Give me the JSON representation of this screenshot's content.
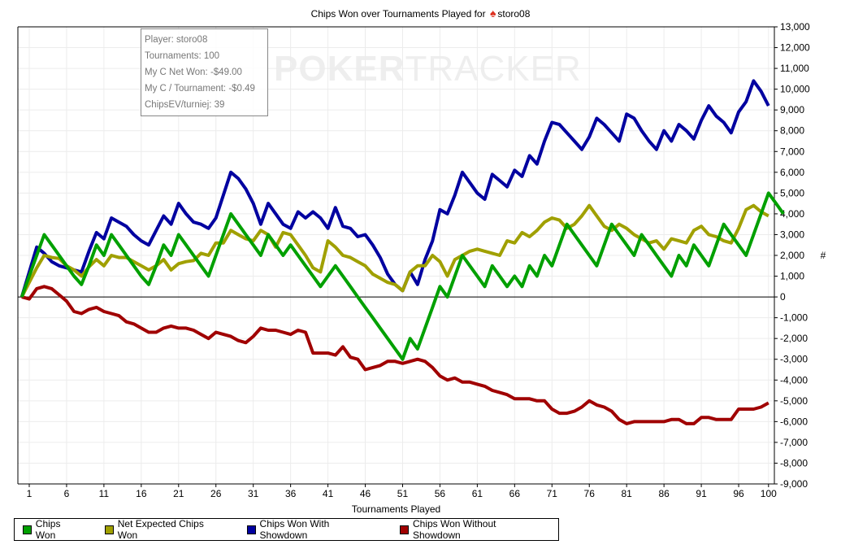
{
  "title": {
    "prefix": "Chips Won over Tournaments Played for",
    "player": "storo08",
    "icon": "spade-icon"
  },
  "watermark": {
    "bold": "POKER",
    "light": "TRACKER"
  },
  "info_box": [
    "Player: storo08",
    "Tournaments: 100",
    "My C Net Won: -$49.00",
    "My C / Tournament: -$0.49",
    "ChipsEV/turniej: 39"
  ],
  "legend": [
    {
      "label": "Chips Won",
      "color": "#00a000"
    },
    {
      "label": "Net Expected Chips Won",
      "color": "#a0a000"
    },
    {
      "label": "Chips Won With Showdown",
      "color": "#0000a0"
    },
    {
      "label": "Chips Won Without Showdown",
      "color": "#a00000"
    }
  ],
  "chart_data": {
    "type": "line",
    "title": "Chips Won over Tournaments Played for storo08",
    "xlabel": "Tournaments Played",
    "ylabel": "#",
    "xlim": [
      0,
      100
    ],
    "ylim": [
      -9000,
      13000
    ],
    "xticks": [
      1,
      6,
      11,
      16,
      21,
      26,
      31,
      36,
      41,
      46,
      51,
      56,
      61,
      66,
      71,
      76,
      81,
      86,
      91,
      96,
      100
    ],
    "yticks": [
      -9000,
      -8000,
      -7000,
      -6000,
      -5000,
      -4000,
      -3000,
      -2000,
      -1000,
      0,
      1000,
      2000,
      3000,
      4000,
      5000,
      6000,
      7000,
      8000,
      9000,
      10000,
      11000,
      12000,
      13000
    ],
    "grid": true,
    "legend_position": "bottom",
    "series": [
      {
        "name": "Chips Won",
        "color": "#00a000",
        "values": [
          0,
          1000,
          2000,
          3000,
          2500,
          2000,
          1500,
          1000,
          600,
          1500,
          2500,
          2000,
          3000,
          2500,
          2000,
          1500,
          1000,
          600,
          1500,
          2500,
          2000,
          3000,
          2500,
          2000,
          1500,
          1000,
          2000,
          3000,
          4000,
          3500,
          3000,
          2500,
          2000,
          3000,
          2500,
          2000,
          2500,
          2000,
          1500,
          1000,
          500,
          1000,
          1500,
          1000,
          500,
          0,
          -500,
          -1000,
          -1500,
          -2000,
          -2500,
          -3000,
          -2000,
          -2500,
          -1500,
          -500,
          500,
          0,
          1000,
          2000,
          1500,
          1000,
          500,
          1500,
          1000,
          500,
          1000,
          500,
          1500,
          1000,
          2000,
          1500,
          2500,
          3500,
          3000,
          2500,
          2000,
          1500,
          2500,
          3500,
          3000,
          2500,
          2000,
          3000,
          2500,
          2000,
          1500,
          1000,
          2000,
          1500,
          2500,
          2000,
          1500,
          2500,
          3500,
          3000,
          2500,
          2000,
          3000,
          4000,
          5000,
          4500,
          4000
        ]
      },
      {
        "name": "Net Expected Chips Won",
        "color": "#a0a000",
        "values": [
          0,
          700,
          1400,
          2000,
          1900,
          1850,
          1500,
          1300,
          1000,
          1450,
          1800,
          1500,
          2000,
          1900,
          1900,
          1700,
          1500,
          1300,
          1500,
          1800,
          1300,
          1600,
          1700,
          1750,
          2100,
          2000,
          2600,
          2600,
          3200,
          3000,
          2800,
          2700,
          3200,
          3000,
          2400,
          3100,
          3000,
          2500,
          2000,
          1400,
          1200,
          2700,
          2400,
          2000,
          1900,
          1700,
          1500,
          1100,
          900,
          700,
          600,
          300,
          1200,
          1500,
          1500,
          2000,
          1700,
          1000,
          1800,
          2000,
          2200,
          2300,
          2200,
          2100,
          2000,
          2700,
          2600,
          3100,
          2900,
          3200,
          3600,
          3800,
          3700,
          3300,
          3500,
          3900,
          4400,
          3900,
          3400,
          3200,
          3500,
          3300,
          3000,
          2800,
          2600,
          2700,
          2300,
          2800,
          2700,
          2600,
          3200,
          3400,
          3000,
          2900,
          2700,
          2600,
          3300,
          4200,
          4400,
          4100,
          3900
        ]
      },
      {
        "name": "Chips Won With Showdown",
        "color": "#0000a0",
        "values": [
          0,
          1200,
          2400,
          2100,
          1700,
          1500,
          1400,
          1300,
          1200,
          2200,
          3100,
          2800,
          3800,
          3600,
          3400,
          3000,
          2700,
          2500,
          3200,
          3900,
          3500,
          4500,
          4000,
          3600,
          3500,
          3300,
          3800,
          4900,
          6000,
          5700,
          5200,
          4500,
          3500,
          4500,
          4000,
          3500,
          3300,
          4100,
          3800,
          4100,
          3800,
          3300,
          4300,
          3400,
          3300,
          2900,
          3000,
          2500,
          1900,
          1100,
          600,
          300,
          1200,
          600,
          1800,
          2700,
          4200,
          4000,
          4900,
          6000,
          5500,
          5000,
          4700,
          5900,
          5600,
          5300,
          6100,
          5800,
          6800,
          6400,
          7500,
          8400,
          8300,
          7900,
          7500,
          7100,
          7700,
          8600,
          8300,
          7900,
          7500,
          8800,
          8600,
          8000,
          7500,
          7100,
          8000,
          7500,
          8300,
          8000,
          7600,
          8500,
          9200,
          8700,
          8400,
          7900,
          8900,
          9400,
          10400,
          9900,
          9200
        ]
      },
      {
        "name": "Chips Won Without Showdown",
        "color": "#a00000",
        "values": [
          0,
          -100,
          400,
          500,
          400,
          100,
          -200,
          -700,
          -800,
          -600,
          -500,
          -700,
          -800,
          -900,
          -1200,
          -1300,
          -1500,
          -1700,
          -1700,
          -1500,
          -1400,
          -1500,
          -1500,
          -1600,
          -1800,
          -2000,
          -1700,
          -1800,
          -1900,
          -2100,
          -2200,
          -1900,
          -1500,
          -1600,
          -1600,
          -1700,
          -1800,
          -1600,
          -1700,
          -2700,
          -2700,
          -2700,
          -2800,
          -2400,
          -2900,
          -3000,
          -3500,
          -3400,
          -3300,
          -3100,
          -3100,
          -3200,
          -3100,
          -3000,
          -3100,
          -3400,
          -3800,
          -4000,
          -3900,
          -4100,
          -4100,
          -4200,
          -4300,
          -4500,
          -4600,
          -4700,
          -4900,
          -4900,
          -4900,
          -5000,
          -5000,
          -5400,
          -5600,
          -5600,
          -5500,
          -5300,
          -5000,
          -5200,
          -5300,
          -5500,
          -5900,
          -6100,
          -6000,
          -6000,
          -6000,
          -6000,
          -6000,
          -5900,
          -5900,
          -6100,
          -6100,
          -5800,
          -5800,
          -5900,
          -5900,
          -5900,
          -5400,
          -5400,
          -5400,
          -5300,
          -5100
        ]
      }
    ]
  }
}
